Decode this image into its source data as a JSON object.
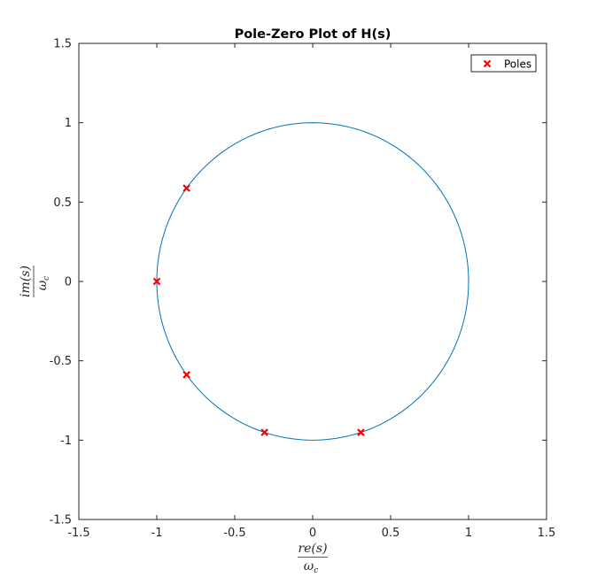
{
  "chart_data": {
    "type": "scatter",
    "title": "Pole-Zero Plot of H(s)",
    "xlabel": {
      "numerator": "re(s)",
      "denominator": "ω",
      "denominator_sub": "c"
    },
    "ylabel": {
      "numerator": "im(s)",
      "denominator": "ω",
      "denominator_sub": "c"
    },
    "xlim": [
      -1.5,
      1.5
    ],
    "ylim": [
      -1.5,
      1.5
    ],
    "xticks": [
      -1.5,
      -1,
      -0.5,
      0,
      0.5,
      1,
      1.5
    ],
    "yticks": [
      -1.5,
      -1,
      -0.5,
      0,
      0.5,
      1,
      1.5
    ],
    "xtick_labels": [
      "-1.5",
      "-1",
      "-0.5",
      "0",
      "0.5",
      "1",
      "1.5"
    ],
    "ytick_labels": [
      "-1.5",
      "-1",
      "-0.5",
      "0",
      "0.5",
      "1",
      "1.5"
    ],
    "grid": false,
    "legend": {
      "position": "top-right",
      "entries": [
        "Poles"
      ]
    },
    "series": [
      {
        "name": "Poles",
        "marker": "x",
        "color": "#ff0000",
        "points": [
          {
            "x": -0.809,
            "y": 0.588
          },
          {
            "x": -1.0,
            "y": 0.0
          },
          {
            "x": -0.809,
            "y": -0.588
          },
          {
            "x": -0.309,
            "y": -0.951
          },
          {
            "x": 0.309,
            "y": -0.951
          }
        ]
      },
      {
        "type": "line",
        "color": "#0072bd",
        "shape": "circle",
        "center": [
          0,
          0
        ],
        "radius": 1
      }
    ]
  }
}
